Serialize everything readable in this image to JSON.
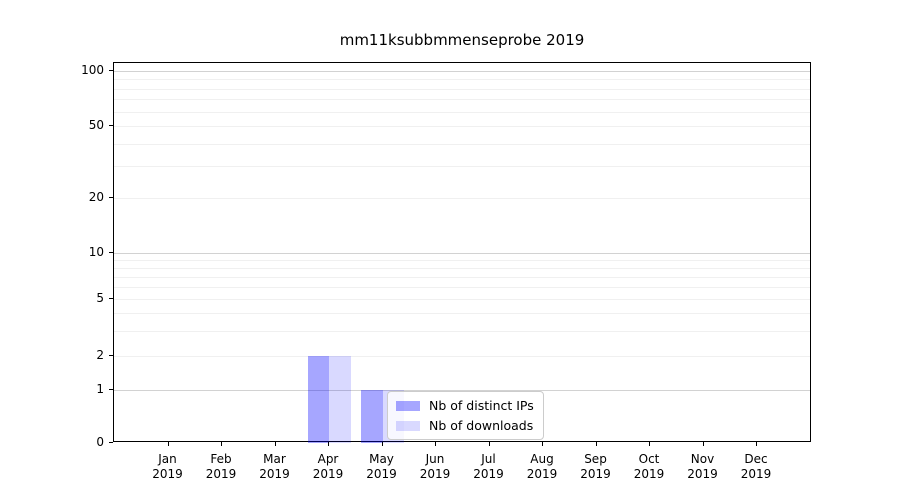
{
  "chart_data": {
    "type": "bar",
    "title": "mm11ksubbmmenseprobe 2019",
    "categories": [
      {
        "month": "Jan",
        "year": "2019"
      },
      {
        "month": "Feb",
        "year": "2019"
      },
      {
        "month": "Mar",
        "year": "2019"
      },
      {
        "month": "Apr",
        "year": "2019"
      },
      {
        "month": "May",
        "year": "2019"
      },
      {
        "month": "Jun",
        "year": "2019"
      },
      {
        "month": "Jul",
        "year": "2019"
      },
      {
        "month": "Aug",
        "year": "2019"
      },
      {
        "month": "Sep",
        "year": "2019"
      },
      {
        "month": "Oct",
        "year": "2019"
      },
      {
        "month": "Nov",
        "year": "2019"
      },
      {
        "month": "Dec",
        "year": "2019"
      }
    ],
    "series": [
      {
        "name": "Nb of distinct IPs",
        "color": "rgba(0,0,255,0.35)",
        "values": [
          0,
          0,
          0,
          2,
          1,
          0,
          0,
          0,
          0,
          0,
          0,
          0
        ]
      },
      {
        "name": "Nb of downloads",
        "color": "rgba(0,0,255,0.15)",
        "values": [
          0,
          0,
          0,
          2,
          1,
          0,
          0,
          0,
          0,
          0,
          0,
          0
        ]
      }
    ],
    "yscale": "symlog",
    "ylim": [
      0,
      110
    ],
    "ytick_labels": [
      0,
      1,
      2,
      5,
      10,
      20,
      50,
      100
    ],
    "grid": "horizontal major+minor",
    "legend_position": "lower center",
    "colors": {
      "major_gridline": "#d2d2d2",
      "minor_gridline": "#f0f0f0",
      "axis": "#000000",
      "legend_border": "#cccccc"
    }
  }
}
